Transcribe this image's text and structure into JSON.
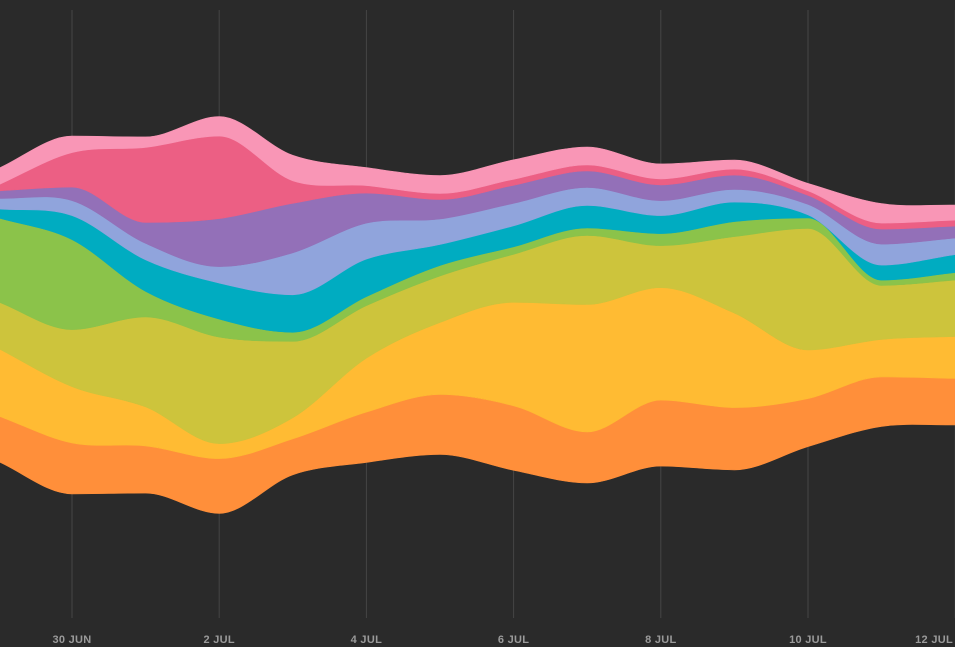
{
  "chart_data": {
    "type": "area",
    "subtype": "streamgraph",
    "background": "#2a2a2a",
    "grid": true,
    "legend": "none",
    "x": [
      "2017-06-29",
      "2017-06-30",
      "2017-07-01",
      "2017-07-02",
      "2017-07-03",
      "2017-07-04",
      "2017-07-05",
      "2017-07-06",
      "2017-07-07",
      "2017-07-08",
      "2017-07-09",
      "2017-07-10",
      "2017-07-11",
      "2017-07-12"
    ],
    "x_ticks": [
      "30 JUN",
      "2 JUL",
      "4 JUL",
      "6 JUL",
      "8 JUL",
      "10 JUL",
      "12 JUL"
    ],
    "series": [
      {
        "color": "#ff8f3a",
        "values": [
          61,
          68,
          63,
          73,
          48,
          67,
          80,
          86,
          68,
          88,
          83,
          64,
          66,
          62
        ]
      },
      {
        "color": "#ffbb33",
        "values": [
          90,
          75,
          52,
          20,
          28,
          72,
          96,
          138,
          170,
          150,
          126,
          65,
          50,
          56
        ]
      },
      {
        "color": "#cdc43c",
        "values": [
          62,
          76,
          120,
          142,
          102,
          70,
          62,
          64,
          92,
          56,
          102,
          162,
          72,
          75
        ]
      },
      {
        "color": "#8bc34a",
        "values": [
          112,
          120,
          34,
          24,
          12,
          12,
          14,
          10,
          10,
          16,
          20,
          14,
          7,
          10
        ]
      },
      {
        "color": "#00acc1",
        "values": [
          12,
          32,
          42,
          48,
          50,
          50,
          28,
          28,
          30,
          24,
          26,
          4,
          20,
          24
        ]
      },
      {
        "color": "#90a4dc",
        "values": [
          14,
          20,
          22,
          22,
          56,
          48,
          34,
          30,
          24,
          20,
          17,
          14,
          28,
          22
        ]
      },
      {
        "color": "#9370b8",
        "values": [
          10,
          18,
          28,
          64,
          66,
          40,
          26,
          24,
          22,
          21,
          19,
          12,
          20,
          16
        ]
      },
      {
        "color": "#ec5f84",
        "values": [
          8,
          46,
          100,
          110,
          30,
          10,
          8,
          8,
          8,
          8,
          8,
          6,
          8,
          8
        ]
      },
      {
        "color": "#f996b6",
        "values": [
          22,
          22,
          14,
          26,
          34,
          24,
          24,
          26,
          24,
          20,
          12,
          10,
          26,
          20
        ]
      }
    ]
  }
}
